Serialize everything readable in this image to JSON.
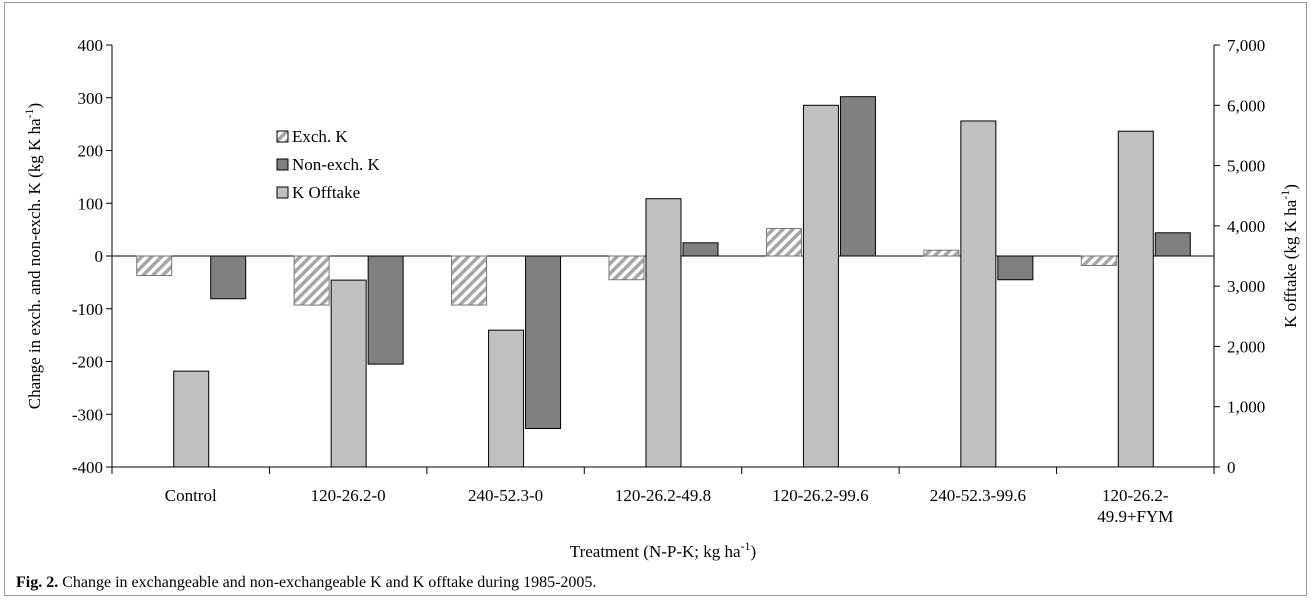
{
  "caption": {
    "label": "Fig. 2.",
    "text": " Change in exchangeable and non-exchangeable K and K offtake during 1985-2005."
  },
  "chart_data": {
    "type": "bar",
    "xlabel": "Treatment (N-P-K; kg ha",
    "xlabel_sup": "-1",
    "xlabel_tail": ")",
    "ylabel_left": "Change in exch. and non-exch. K (kg K ha",
    "ylabel_left_sup": "-1",
    "ylabel_left_tail": ")",
    "ylabel_right": "K offtake (kg K ha",
    "ylabel_right_sup": "-1",
    "ylabel_right_tail": ")",
    "ylim_left": [
      -400,
      400
    ],
    "ylim_right": [
      0,
      7000
    ],
    "left_ticks": [
      {
        "v": 400,
        "t": "400"
      },
      {
        "v": 300,
        "t": "300"
      },
      {
        "v": 200,
        "t": "200"
      },
      {
        "v": 100,
        "t": "100"
      },
      {
        "v": 0,
        "t": "0"
      },
      {
        "v": -100,
        "t": "-100"
      },
      {
        "v": -200,
        "t": "-200"
      },
      {
        "v": -300,
        "t": "-300"
      },
      {
        "v": -400,
        "t": "-400"
      }
    ],
    "right_ticks": [
      {
        "v": 7000,
        "t": "7,000"
      },
      {
        "v": 6000,
        "t": "6,000"
      },
      {
        "v": 5000,
        "t": "5,000"
      },
      {
        "v": 4000,
        "t": "4,000"
      },
      {
        "v": 3000,
        "t": "3,000"
      },
      {
        "v": 2000,
        "t": "2,000"
      },
      {
        "v": 1000,
        "t": "1,000"
      },
      {
        "v": 0,
        "t": "0"
      }
    ],
    "categories": [
      [
        "Control"
      ],
      [
        "120-26.2-0"
      ],
      [
        "240-52.3-0"
      ],
      [
        "120-26.2-49.8"
      ],
      [
        "120-26.2-99.6"
      ],
      [
        "240-52.3-99.6"
      ],
      [
        "120-26.2-",
        "49.9+FYM"
      ]
    ],
    "series": [
      {
        "name": "Exch. K",
        "axis": "left",
        "color": "#ffffff",
        "pattern": "diagonal-hatch",
        "values": [
          -37,
          -93,
          -93,
          -45,
          52,
          11,
          -18
        ]
      },
      {
        "name": "Non-exch. K",
        "axis": "left",
        "color": "#808080",
        "pattern": "solid",
        "values": [
          -81,
          -205,
          -327,
          25,
          302,
          -45,
          44
        ]
      },
      {
        "name": "K Offtake",
        "axis": "right",
        "color": "#c0c0c0",
        "pattern": "solid",
        "values": [
          1590,
          3100,
          2270,
          4450,
          6000,
          5740,
          5570
        ]
      }
    ],
    "bar_order": [
      "Exch. K",
      "K Offtake",
      "Non-exch. K"
    ],
    "legend": "top-left",
    "grid": false
  }
}
